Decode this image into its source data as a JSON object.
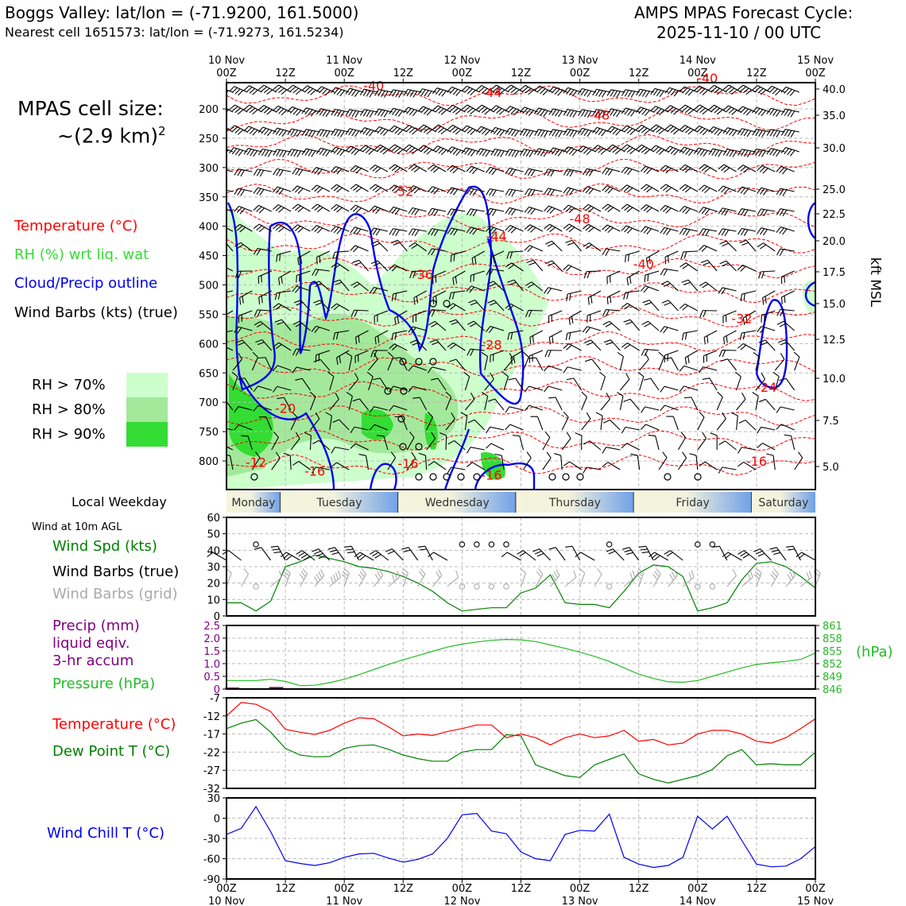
{
  "header": {
    "title": "Boggs Valley: lat/lon = (-71.9200, 161.5000)",
    "subtitle": "Nearest cell 1651573: lat/lon = (-71.9273, 161.5234)",
    "cycle_title": "AMPS MPAS Forecast Cycle:",
    "cycle_value": "2025-11-10 / 00 UTC"
  },
  "legend": {
    "cell_size_line1": "MPAS cell size:",
    "cell_size_line2": "~(2.9 km)",
    "cell_size_exp": "2",
    "temperature": "Temperature (°C)",
    "rh": "RH (%) wrt liq. wat",
    "cloud": "Cloud/Precip outline",
    "wind_barbs": "Wind Barbs (kts) (true)",
    "rh70": "RH > 70%",
    "rh80": "RH > 80%",
    "rh90": "RH > 90%"
  },
  "colors": {
    "temperature": "#ff0000",
    "rh": "#33dd33",
    "cloud": "#0000ee",
    "rh70": "#ccffcc",
    "rh80": "#a3e89b",
    "rh90": "#33dd33",
    "dewpoint": "#008000",
    "pressure": "#22bb22",
    "windchill": "#0000ee",
    "precip": "#800080",
    "grid_barbs": "#aaaaaa"
  },
  "weekday": {
    "label": "Local Weekday",
    "days": [
      "Monday",
      "Tuesday",
      "Wednesday",
      "Thursday",
      "Friday",
      "Saturday"
    ]
  },
  "panels": {
    "wind": {
      "note": "Wind at 10m AGL",
      "label_speed": "Wind Spd (kts)",
      "label_barbs": "Wind Barbs (true)",
      "label_grid": "Wind Barbs (grid)"
    },
    "precip": {
      "label1": "Precip (mm)",
      "label2": "liquid eqiv.",
      "label3": "3-hr accum",
      "label_pressure": "Pressure (hPa)",
      "unit_right": "(hPa)"
    },
    "temp": {
      "label_temp": "Temperature (°C)",
      "label_dew": "Dew Point T (°C)"
    },
    "windchill": {
      "label": "Wind Chill T (°C)"
    }
  },
  "chart_data": [
    {
      "type": "heatmap",
      "name": "time-height cross section",
      "x_ticks_top": [
        {
          "t": 0,
          "line1": "10 Nov",
          "line2": "00Z"
        },
        {
          "t": 12,
          "line1": "",
          "line2": "12Z"
        },
        {
          "t": 24,
          "line1": "11 Nov",
          "line2": "00Z"
        },
        {
          "t": 36,
          "line1": "",
          "line2": "12Z"
        },
        {
          "t": 48,
          "line1": "12 Nov",
          "line2": "00Z"
        },
        {
          "t": 60,
          "line1": "",
          "line2": "12Z"
        },
        {
          "t": 72,
          "line1": "13 Nov",
          "line2": "00Z"
        },
        {
          "t": 84,
          "line1": "",
          "line2": "12Z"
        },
        {
          "t": 96,
          "line1": "14 Nov",
          "line2": "00Z"
        },
        {
          "t": 108,
          "line1": "",
          "line2": "12Z"
        },
        {
          "t": 120,
          "line1": "15 Nov",
          "line2": "00Z"
        }
      ],
      "xlim": [
        0,
        120
      ],
      "pressure_ticks": [
        200,
        250,
        300,
        350,
        400,
        450,
        500,
        550,
        600,
        650,
        700,
        750,
        800
      ],
      "ylim_hpa": [
        840,
        150
      ],
      "kft_ticks": [
        "40.0",
        "35.0",
        "30.0",
        "25.0",
        "22.5",
        "20.0",
        "17.5",
        "15.0",
        "12.5",
        "10.0",
        "7.5",
        "5.0"
      ],
      "kft_label": "kft MSL",
      "temperature_labels": [
        {
          "t": 30,
          "p": 168,
          "v": "-40"
        },
        {
          "t": 98,
          "p": 155,
          "v": "-40"
        },
        {
          "t": 54,
          "p": 180,
          "v": "-44"
        },
        {
          "t": 76,
          "p": 218,
          "v": "-48"
        },
        {
          "t": 36,
          "p": 348,
          "v": "-52"
        },
        {
          "t": 55,
          "p": 425,
          "v": "-44"
        },
        {
          "t": 72,
          "p": 395,
          "v": "-48"
        },
        {
          "t": 40,
          "p": 490,
          "v": "-36"
        },
        {
          "t": 85,
          "p": 472,
          "v": "-40"
        },
        {
          "t": 105,
          "p": 565,
          "v": "-32"
        },
        {
          "t": 54,
          "p": 610,
          "v": "-28"
        },
        {
          "t": 110,
          "p": 682,
          "v": "-24"
        },
        {
          "t": 12,
          "p": 718,
          "v": "-20"
        },
        {
          "t": 6,
          "p": 810,
          "v": "-12"
        },
        {
          "t": 18,
          "p": 825,
          "v": "-16"
        },
        {
          "t": 37,
          "p": 812,
          "v": "-16"
        },
        {
          "t": 54,
          "p": 832,
          "v": "-16"
        },
        {
          "t": 108,
          "p": 808,
          "v": "-16"
        }
      ]
    },
    {
      "type": "line",
      "name": "10m wind speed",
      "x": [
        0,
        3,
        6,
        9,
        12,
        15,
        18,
        21,
        24,
        27,
        30,
        33,
        36,
        39,
        42,
        45,
        48,
        51,
        54,
        57,
        60,
        63,
        66,
        69,
        72,
        75,
        78,
        81,
        84,
        87,
        90,
        93,
        96,
        99,
        102,
        105,
        108,
        111,
        114,
        117,
        120
      ],
      "series": [
        {
          "name": "Wind Spd (kts)",
          "values": [
            8,
            8,
            3,
            9,
            30,
            33,
            37,
            35,
            33,
            30,
            29,
            27,
            24,
            20,
            15,
            8,
            3,
            4,
            5,
            5,
            14,
            17,
            25,
            8,
            7,
            7,
            5,
            15,
            26,
            31,
            30,
            24,
            3,
            5,
            8,
            22,
            32,
            33,
            30,
            24,
            17
          ]
        }
      ],
      "ylim": [
        0,
        60
      ],
      "yticks": [
        0,
        10,
        20,
        30,
        40,
        50,
        60
      ]
    },
    {
      "type": "line",
      "name": "pressure and precip",
      "x": [
        0,
        3,
        6,
        9,
        12,
        15,
        18,
        21,
        24,
        27,
        30,
        33,
        36,
        39,
        42,
        45,
        48,
        51,
        54,
        57,
        60,
        63,
        66,
        69,
        72,
        75,
        78,
        81,
        84,
        87,
        90,
        93,
        96,
        99,
        102,
        105,
        108,
        111,
        114,
        117,
        120
      ],
      "series": [
        {
          "name": "Pressure (hPa)",
          "values": [
            848.0,
            848.0,
            848.0,
            848.3,
            847.8,
            846.8,
            846.9,
            847.5,
            848.3,
            849.4,
            850.6,
            851.8,
            852.9,
            853.9,
            854.9,
            855.9,
            856.6,
            857.1,
            857.5,
            857.7,
            857.6,
            857.2,
            856.4,
            855.6,
            854.7,
            853.7,
            852.5,
            851.0,
            849.5,
            848.5,
            847.7,
            847.6,
            848.0,
            849.0,
            850.0,
            851.0,
            851.8,
            852.2,
            852.5,
            853.0,
            854.5
          ]
        },
        {
          "name": "Precip (mm)",
          "values": [
            0.06,
            0,
            0,
            0.08,
            0,
            0,
            0,
            0,
            0,
            0,
            0,
            0,
            0,
            0,
            0,
            0,
            0,
            0,
            0,
            0,
            0,
            0,
            0,
            0,
            0,
            0,
            0,
            0,
            0,
            0,
            0,
            0,
            0,
            0,
            0,
            0,
            0,
            0,
            0,
            0,
            0
          ]
        }
      ],
      "ylim_left": [
        0,
        2.5
      ],
      "yticks_left": [
        "0",
        "0.5",
        "1.0",
        "1.5",
        "2.0",
        "2.5"
      ],
      "ylim_right": [
        846,
        861
      ],
      "yticks_right": [
        "846",
        "849",
        "852",
        "855",
        "858",
        "861"
      ]
    },
    {
      "type": "line",
      "name": "temperature and dew point",
      "x": [
        0,
        3,
        6,
        9,
        12,
        15,
        18,
        21,
        24,
        27,
        30,
        33,
        36,
        39,
        42,
        45,
        48,
        51,
        54,
        57,
        60,
        63,
        66,
        69,
        72,
        75,
        78,
        81,
        84,
        87,
        90,
        93,
        96,
        99,
        102,
        105,
        108,
        111,
        114,
        117,
        120
      ],
      "series": [
        {
          "name": "Temperature (°C)",
          "values": [
            -12,
            -8.3,
            -8.8,
            -10.8,
            -15.7,
            -16.5,
            -17.1,
            -16.0,
            -14.0,
            -12.5,
            -12.8,
            -15.0,
            -17.5,
            -17.0,
            -17.4,
            -16.3,
            -15.5,
            -14.5,
            -14.5,
            -18.0,
            -17.0,
            -18.0,
            -20.0,
            -18.0,
            -17.0,
            -18.0,
            -17.5,
            -16.0,
            -19.0,
            -18.5,
            -20.0,
            -19.5,
            -17.0,
            -16.0,
            -16.0,
            -17.0,
            -19.0,
            -19.5,
            -18.0,
            -15.5,
            -12.8
          ]
        },
        {
          "name": "Dew Point T (°C)",
          "values": [
            -15.5,
            -14.0,
            -13.0,
            -16.5,
            -21.0,
            -22.8,
            -23.3,
            -23.2,
            -21.0,
            -20.2,
            -20.0,
            -21.2,
            -22.8,
            -23.8,
            -24.5,
            -24.5,
            -22.0,
            -21.3,
            -21.3,
            -17.2,
            -17.5,
            -25.5,
            -27.0,
            -28.5,
            -29.0,
            -25.5,
            -24.0,
            -22.5,
            -28.0,
            -29.5,
            -30.5,
            -29.5,
            -28.5,
            -26.8,
            -23.0,
            -21.3,
            -25.5,
            -25.2,
            -25.5,
            -25.5,
            -22.0
          ]
        }
      ],
      "ylim": [
        -32,
        -7
      ],
      "yticks": [
        -32,
        -27,
        -22,
        -17,
        -12,
        -7
      ]
    },
    {
      "type": "line",
      "name": "wind chill",
      "x": [
        0,
        3,
        6,
        9,
        12,
        15,
        18,
        21,
        24,
        27,
        30,
        33,
        36,
        39,
        42,
        45,
        48,
        51,
        54,
        57,
        60,
        63,
        66,
        69,
        72,
        75,
        78,
        81,
        84,
        87,
        90,
        93,
        96,
        99,
        102,
        105,
        108,
        111,
        114,
        117,
        120
      ],
      "series": [
        {
          "name": "Wind Chill T (°C)",
          "values": [
            -24,
            -15,
            17,
            -20,
            -63,
            -67,
            -70,
            -66,
            -58,
            -53,
            -52,
            -59,
            -65,
            -61,
            -53,
            -30,
            5,
            7,
            -19,
            -23,
            -50,
            -60,
            -63,
            -24,
            -18,
            -19,
            6,
            -58,
            -68,
            -73,
            -70,
            -58,
            3,
            -16,
            3,
            -33,
            -68,
            -72,
            -71,
            -60,
            -42
          ]
        }
      ],
      "ylim": [
        -90,
        30
      ],
      "yticks": [
        -90,
        -60,
        -30,
        0,
        30
      ],
      "x_ticks_bottom": [
        {
          "t": 0,
          "line1": "00Z",
          "line2": "10 Nov"
        },
        {
          "t": 12,
          "line1": "12Z",
          "line2": ""
        },
        {
          "t": 24,
          "line1": "00Z",
          "line2": "11 Nov"
        },
        {
          "t": 36,
          "line1": "12Z",
          "line2": ""
        },
        {
          "t": 48,
          "line1": "00Z",
          "line2": "12 Nov"
        },
        {
          "t": 60,
          "line1": "12Z",
          "line2": ""
        },
        {
          "t": 72,
          "line1": "00Z",
          "line2": "13 Nov"
        },
        {
          "t": 84,
          "line1": "12Z",
          "line2": ""
        },
        {
          "t": 96,
          "line1": "00Z",
          "line2": "14 Nov"
        },
        {
          "t": 108,
          "line1": "12Z",
          "line2": ""
        },
        {
          "t": 120,
          "line1": "00Z",
          "line2": "15 Nov"
        }
      ]
    }
  ]
}
